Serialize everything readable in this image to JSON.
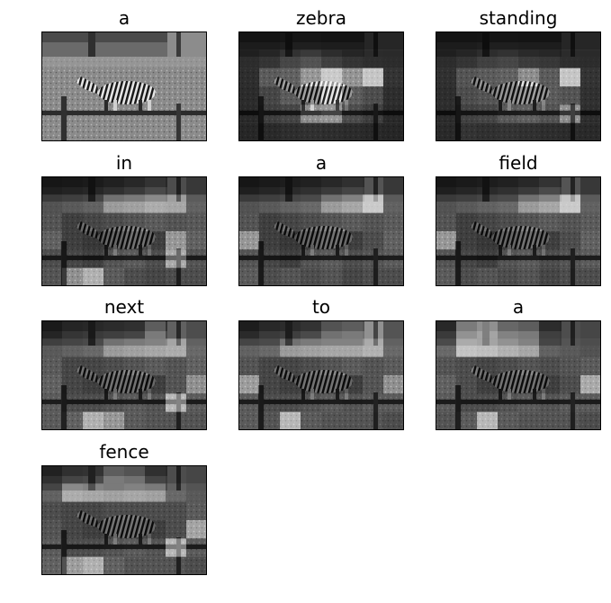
{
  "figure": {
    "panels": [
      {
        "word": "a",
        "kind": "photo",
        "attention": []
      },
      {
        "word": "zebra",
        "kind": "attention",
        "attention": [
          [
            0.02,
            0.02,
            0.05,
            0.05,
            0.03,
            0.03,
            0.02,
            0.02
          ],
          [
            0.05,
            0.1,
            0.22,
            0.3,
            0.18,
            0.1,
            0.06,
            0.05
          ],
          [
            0.08,
            0.4,
            0.45,
            0.55,
            0.95,
            0.52,
            0.9,
            0.12
          ],
          [
            0.06,
            0.25,
            0.4,
            0.45,
            0.5,
            0.42,
            0.3,
            0.08
          ],
          [
            0.05,
            0.2,
            0.25,
            0.5,
            0.55,
            0.3,
            0.2,
            0.05
          ],
          [
            0.03,
            0.05,
            0.08,
            0.1,
            0.08,
            0.06,
            0.04,
            0.03
          ]
        ]
      },
      {
        "word": "standing",
        "kind": "attention",
        "attention": [
          [
            0.02,
            0.02,
            0.04,
            0.04,
            0.03,
            0.03,
            0.02,
            0.02
          ],
          [
            0.05,
            0.1,
            0.18,
            0.22,
            0.15,
            0.12,
            0.06,
            0.05
          ],
          [
            0.1,
            0.35,
            0.4,
            0.45,
            0.48,
            0.4,
            0.9,
            0.12
          ],
          [
            0.08,
            0.3,
            0.35,
            0.4,
            0.45,
            0.4,
            0.35,
            0.1
          ],
          [
            0.06,
            0.22,
            0.25,
            0.4,
            0.45,
            0.35,
            0.5,
            0.08
          ],
          [
            0.05,
            0.12,
            0.1,
            0.12,
            0.1,
            0.08,
            0.06,
            0.05
          ]
        ]
      },
      {
        "word": "in",
        "kind": "attention",
        "attention": [
          [
            0.05,
            0.08,
            0.12,
            0.2,
            0.3,
            0.45,
            0.3,
            0.15
          ],
          [
            0.3,
            0.35,
            0.4,
            0.5,
            0.55,
            0.65,
            0.6,
            0.4
          ],
          [
            0.35,
            0.2,
            0.25,
            0.3,
            0.35,
            0.4,
            0.35,
            0.38
          ],
          [
            0.45,
            0.2,
            0.15,
            0.2,
            0.25,
            0.2,
            0.55,
            0.45
          ],
          [
            0.3,
            0.25,
            0.2,
            0.35,
            0.4,
            0.3,
            0.7,
            0.35
          ],
          [
            0.35,
            0.5,
            0.75,
            0.4,
            0.3,
            0.25,
            0.3,
            0.3
          ]
        ]
      },
      {
        "word": "a",
        "kind": "attention",
        "attention": [
          [
            0.05,
            0.1,
            0.15,
            0.2,
            0.3,
            0.4,
            0.35,
            0.15
          ],
          [
            0.3,
            0.35,
            0.4,
            0.45,
            0.5,
            0.6,
            0.9,
            0.4
          ],
          [
            0.35,
            0.2,
            0.25,
            0.3,
            0.35,
            0.4,
            0.35,
            0.4
          ],
          [
            0.55,
            0.2,
            0.15,
            0.2,
            0.25,
            0.2,
            0.3,
            0.45
          ],
          [
            0.35,
            0.25,
            0.2,
            0.35,
            0.4,
            0.3,
            0.35,
            0.4
          ],
          [
            0.4,
            0.3,
            0.35,
            0.3,
            0.35,
            0.25,
            0.3,
            0.3
          ]
        ]
      },
      {
        "word": "field",
        "kind": "attention",
        "attention": [
          [
            0.05,
            0.1,
            0.15,
            0.2,
            0.3,
            0.45,
            0.35,
            0.15
          ],
          [
            0.3,
            0.35,
            0.4,
            0.45,
            0.5,
            0.6,
            0.9,
            0.4
          ],
          [
            0.35,
            0.2,
            0.25,
            0.3,
            0.35,
            0.4,
            0.35,
            0.4
          ],
          [
            0.55,
            0.2,
            0.15,
            0.2,
            0.25,
            0.2,
            0.3,
            0.45
          ],
          [
            0.35,
            0.25,
            0.2,
            0.35,
            0.4,
            0.3,
            0.35,
            0.4
          ],
          [
            0.4,
            0.3,
            0.35,
            0.3,
            0.35,
            0.25,
            0.3,
            0.3
          ]
        ]
      },
      {
        "word": "next",
        "kind": "attention",
        "attention": [
          [
            0.1,
            0.25,
            0.3,
            0.35,
            0.4,
            0.55,
            0.45,
            0.3
          ],
          [
            0.35,
            0.4,
            0.45,
            0.5,
            0.55,
            0.6,
            0.65,
            0.45
          ],
          [
            0.4,
            0.25,
            0.25,
            0.3,
            0.35,
            0.4,
            0.35,
            0.45
          ],
          [
            0.45,
            0.25,
            0.2,
            0.25,
            0.25,
            0.2,
            0.35,
            0.5
          ],
          [
            0.4,
            0.3,
            0.3,
            0.35,
            0.4,
            0.35,
            0.8,
            0.4
          ],
          [
            0.4,
            0.45,
            0.75,
            0.55,
            0.4,
            0.35,
            0.35,
            0.35
          ]
        ]
      },
      {
        "word": "to",
        "kind": "attention",
        "attention": [
          [
            0.15,
            0.3,
            0.35,
            0.45,
            0.5,
            0.55,
            0.5,
            0.35
          ],
          [
            0.4,
            0.45,
            0.5,
            0.55,
            0.6,
            0.6,
            0.7,
            0.45
          ],
          [
            0.35,
            0.25,
            0.25,
            0.3,
            0.35,
            0.4,
            0.35,
            0.4
          ],
          [
            0.6,
            0.25,
            0.2,
            0.25,
            0.25,
            0.2,
            0.35,
            0.5
          ],
          [
            0.4,
            0.3,
            0.3,
            0.35,
            0.4,
            0.35,
            0.4,
            0.4
          ],
          [
            0.4,
            0.35,
            0.8,
            0.4,
            0.35,
            0.35,
            0.35,
            0.3
          ]
        ]
      },
      {
        "word": "a",
        "kind": "attention",
        "attention": [
          [
            0.3,
            0.7,
            0.8,
            0.6,
            0.55,
            0.35,
            0.3,
            0.25
          ],
          [
            0.45,
            0.85,
            0.8,
            0.7,
            0.6,
            0.4,
            0.35,
            0.3
          ],
          [
            0.35,
            0.3,
            0.25,
            0.3,
            0.35,
            0.3,
            0.35,
            0.4
          ],
          [
            0.45,
            0.3,
            0.2,
            0.25,
            0.25,
            0.2,
            0.3,
            0.7
          ],
          [
            0.4,
            0.3,
            0.3,
            0.35,
            0.4,
            0.35,
            0.4,
            0.4
          ],
          [
            0.35,
            0.4,
            0.8,
            0.4,
            0.35,
            0.35,
            0.35,
            0.3
          ]
        ]
      },
      {
        "word": "fence",
        "kind": "attention",
        "attention": [
          [
            0.2,
            0.4,
            0.45,
            0.55,
            0.5,
            0.4,
            0.3,
            0.25
          ],
          [
            0.4,
            0.65,
            0.6,
            0.55,
            0.6,
            0.55,
            0.45,
            0.35
          ],
          [
            0.3,
            0.25,
            0.25,
            0.3,
            0.3,
            0.3,
            0.3,
            0.4
          ],
          [
            0.35,
            0.25,
            0.2,
            0.25,
            0.25,
            0.2,
            0.3,
            0.65
          ],
          [
            0.4,
            0.3,
            0.3,
            0.35,
            0.4,
            0.35,
            0.8,
            0.4
          ],
          [
            0.45,
            0.6,
            0.75,
            0.45,
            0.35,
            0.35,
            0.35,
            0.3
          ]
        ]
      }
    ]
  }
}
